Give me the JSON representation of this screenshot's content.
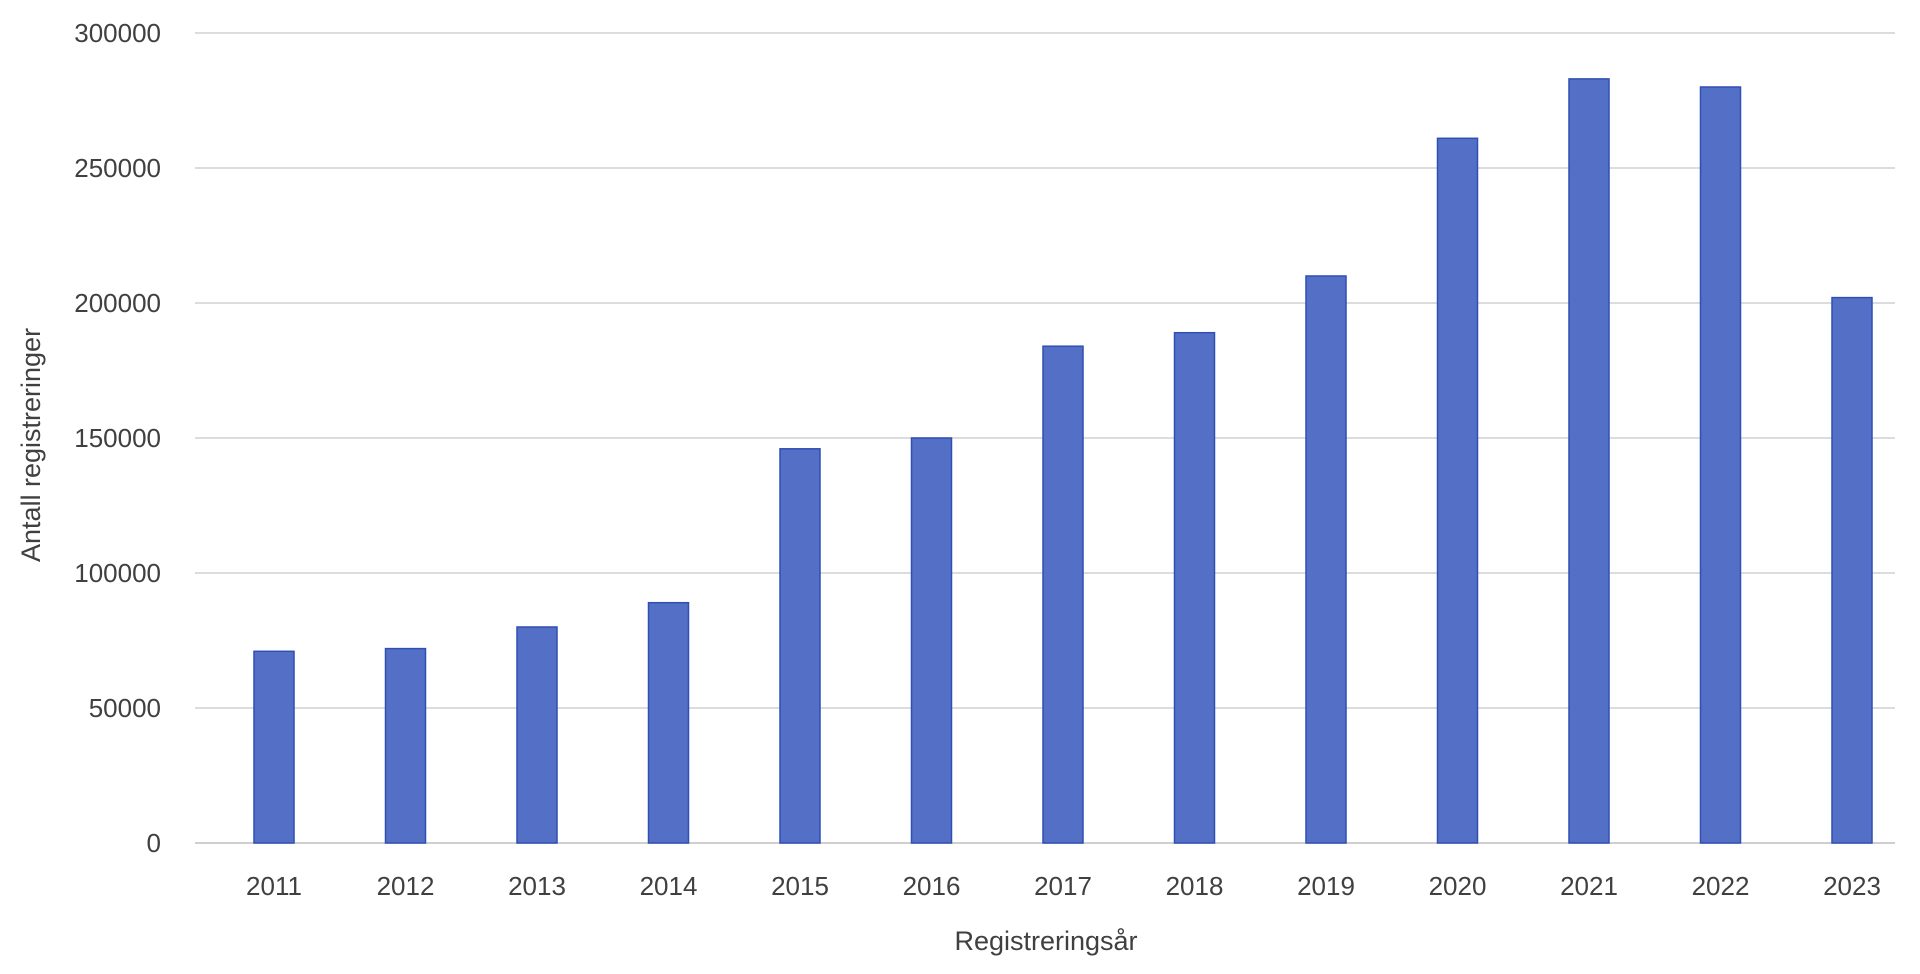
{
  "chart_data": {
    "type": "bar",
    "title": "",
    "xlabel": "Registreringsår",
    "ylabel": "Antall registreringer",
    "categories": [
      "2011",
      "2012",
      "2013",
      "2014",
      "2015",
      "2016",
      "2017",
      "2018",
      "2019",
      "2020",
      "2021",
      "2022",
      "2023"
    ],
    "series": [
      {
        "values": [
          71000,
          72000,
          80000,
          89000,
          146000,
          150000,
          184000,
          189000,
          210000,
          261000,
          283000,
          280000,
          202000
        ],
        "color": "#5470c6"
      }
    ],
    "ylim": [
      0,
      300000
    ],
    "yticks": [
      "0",
      "50000",
      "100000",
      "150000",
      "200000",
      "250000",
      "300000"
    ],
    "grid": true,
    "legend": "none"
  }
}
